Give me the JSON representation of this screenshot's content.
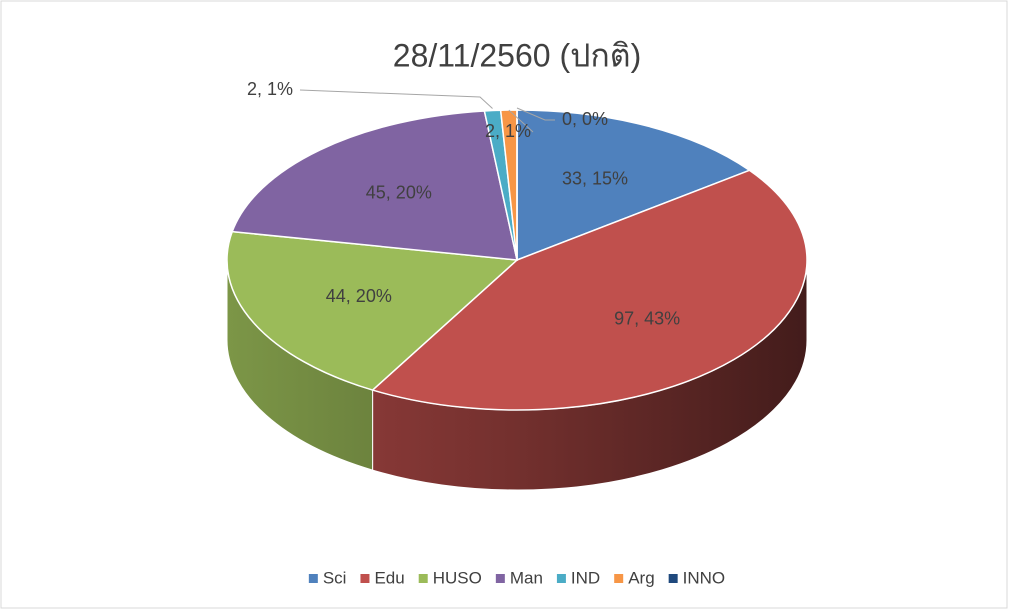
{
  "chart_data": {
    "type": "pie",
    "title": "28/11/2560 (ปกติ)",
    "categories": [
      "Sci",
      "Edu",
      "HUSO",
      "Man",
      "IND",
      "Arg",
      "INNO"
    ],
    "values": [
      33,
      97,
      44,
      45,
      2,
      2,
      0
    ],
    "value_labels": [
      "33, 15%",
      "97, 43%",
      "44, 20%",
      "45, 20%",
      "2, 1%",
      "2, 1%",
      "0, 0%"
    ],
    "colors": [
      "#4f81bd",
      "#c0504d",
      "#9bbb59",
      "#8064a2",
      "#4bacc6",
      "#f79646",
      "#1f497d"
    ],
    "legend": "bottom"
  }
}
